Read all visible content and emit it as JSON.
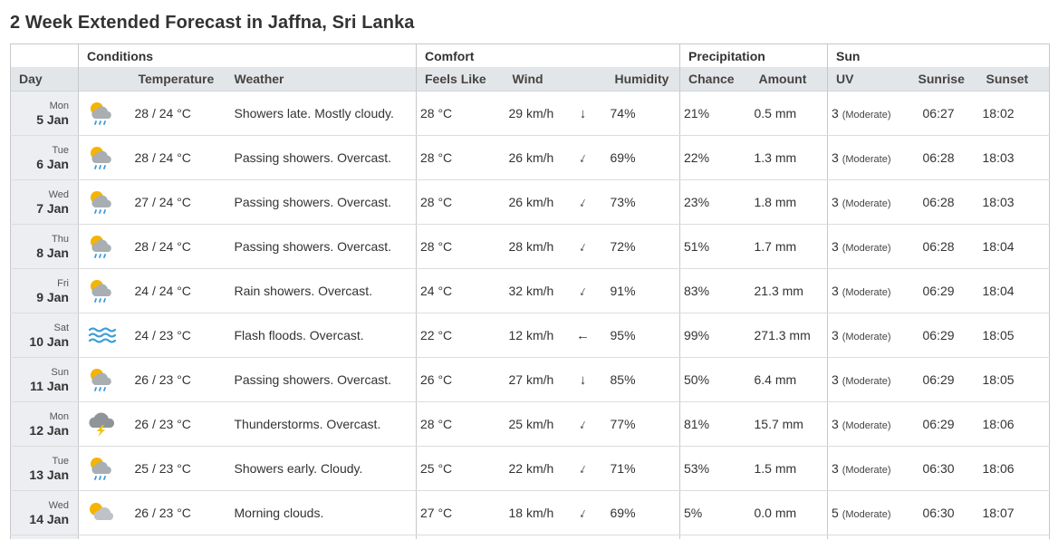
{
  "page": {
    "title": "2 Week Extended Forecast in Jaffna, Sri Lanka"
  },
  "table": {
    "groups": {
      "conditions": "Conditions",
      "comfort": "Comfort",
      "precipitation": "Precipitation",
      "sun": "Sun"
    },
    "columns": {
      "day": "Day",
      "temperature": "Temperature",
      "weather": "Weather",
      "feels_like": "Feels Like",
      "wind": "Wind",
      "humidity": "Humidity",
      "chance": "Chance",
      "amount": "Amount",
      "uv": "UV",
      "sunrise": "Sunrise",
      "sunset": "Sunset"
    },
    "rows": [
      {
        "day": "Mon",
        "date": "5 Jan",
        "icon": "rain-showers-icon",
        "temp": "28 / 24 °C",
        "weather": "Showers late. Mostly cloudy.",
        "feels": "28 °C",
        "wind": "29 km/h",
        "wind_dir": "↓",
        "wind_rot": 0,
        "humidity": "74%",
        "chance": "21%",
        "amount": "0.5 mm",
        "uv": "3",
        "uv_desc": "(Moderate)",
        "sunrise": "06:27",
        "sunset": "18:02"
      },
      {
        "day": "Tue",
        "date": "6 Jan",
        "icon": "rain-showers-icon",
        "temp": "28 / 24 °C",
        "weather": "Passing showers. Overcast.",
        "feels": "28 °C",
        "wind": "26 km/h",
        "wind_dir": "↓",
        "wind_rot": 25,
        "humidity": "69%",
        "chance": "22%",
        "amount": "1.3 mm",
        "uv": "3",
        "uv_desc": "(Moderate)",
        "sunrise": "06:28",
        "sunset": "18:03"
      },
      {
        "day": "Wed",
        "date": "7 Jan",
        "icon": "rain-showers-icon",
        "temp": "27 / 24 °C",
        "weather": "Passing showers. Overcast.",
        "feels": "28 °C",
        "wind": "26 km/h",
        "wind_dir": "↓",
        "wind_rot": 25,
        "humidity": "73%",
        "chance": "23%",
        "amount": "1.8 mm",
        "uv": "3",
        "uv_desc": "(Moderate)",
        "sunrise": "06:28",
        "sunset": "18:03"
      },
      {
        "day": "Thu",
        "date": "8 Jan",
        "icon": "rain-showers-icon",
        "temp": "28 / 24 °C",
        "weather": "Passing showers. Overcast.",
        "feels": "28 °C",
        "wind": "28 km/h",
        "wind_dir": "↓",
        "wind_rot": 25,
        "humidity": "72%",
        "chance": "51%",
        "amount": "1.7 mm",
        "uv": "3",
        "uv_desc": "(Moderate)",
        "sunrise": "06:28",
        "sunset": "18:04"
      },
      {
        "day": "Fri",
        "date": "9 Jan",
        "icon": "rain-showers-icon",
        "temp": "24 / 24 °C",
        "weather": "Rain showers. Overcast.",
        "feels": "24 °C",
        "wind": "32 km/h",
        "wind_dir": "↓",
        "wind_rot": 25,
        "humidity": "91%",
        "chance": "83%",
        "amount": "21.3 mm",
        "uv": "3",
        "uv_desc": "(Moderate)",
        "sunrise": "06:29",
        "sunset": "18:04"
      },
      {
        "day": "Sat",
        "date": "10 Jan",
        "icon": "flood-icon",
        "temp": "24 / 23 °C",
        "weather": "Flash floods. Overcast.",
        "feels": "22 °C",
        "wind": "12 km/h",
        "wind_dir": "←",
        "wind_rot": 0,
        "humidity": "95%",
        "chance": "99%",
        "amount": "271.3 mm",
        "uv": "3",
        "uv_desc": "(Moderate)",
        "sunrise": "06:29",
        "sunset": "18:05"
      },
      {
        "day": "Sun",
        "date": "11 Jan",
        "icon": "rain-showers-icon",
        "temp": "26 / 23 °C",
        "weather": "Passing showers. Overcast.",
        "feels": "26 °C",
        "wind": "27 km/h",
        "wind_dir": "↓",
        "wind_rot": 0,
        "humidity": "85%",
        "chance": "50%",
        "amount": "6.4 mm",
        "uv": "3",
        "uv_desc": "(Moderate)",
        "sunrise": "06:29",
        "sunset": "18:05"
      },
      {
        "day": "Mon",
        "date": "12 Jan",
        "icon": "thunderstorm-icon",
        "temp": "26 / 23 °C",
        "weather": "Thunderstorms. Overcast.",
        "feels": "28 °C",
        "wind": "25 km/h",
        "wind_dir": "↓",
        "wind_rot": 25,
        "humidity": "77%",
        "chance": "81%",
        "amount": "15.7 mm",
        "uv": "3",
        "uv_desc": "(Moderate)",
        "sunrise": "06:29",
        "sunset": "18:06"
      },
      {
        "day": "Tue",
        "date": "13 Jan",
        "icon": "rain-showers-icon",
        "temp": "25 / 23 °C",
        "weather": "Showers early. Cloudy.",
        "feels": "25 °C",
        "wind": "22 km/h",
        "wind_dir": "↓",
        "wind_rot": 25,
        "humidity": "71%",
        "chance": "53%",
        "amount": "1.5 mm",
        "uv": "3",
        "uv_desc": "(Moderate)",
        "sunrise": "06:30",
        "sunset": "18:06"
      },
      {
        "day": "Wed",
        "date": "14 Jan",
        "icon": "partly-cloudy-icon",
        "temp": "26 / 23 °C",
        "weather": "Morning clouds.",
        "feels": "27 °C",
        "wind": "18 km/h",
        "wind_dir": "↓",
        "wind_rot": 25,
        "humidity": "69%",
        "chance": "5%",
        "amount": "0.0 mm",
        "uv": "5",
        "uv_desc": "(Moderate)",
        "sunrise": "06:30",
        "sunset": "18:07"
      }
    ]
  },
  "colors": {
    "sun": "#f5b400",
    "cloud": "#a9aeb3",
    "rain": "#3d9ad6",
    "bolt": "#f2c200",
    "water": "#3b9fd8",
    "header_bg": "#e3e6e9",
    "day_bg": "#eceef1"
  }
}
